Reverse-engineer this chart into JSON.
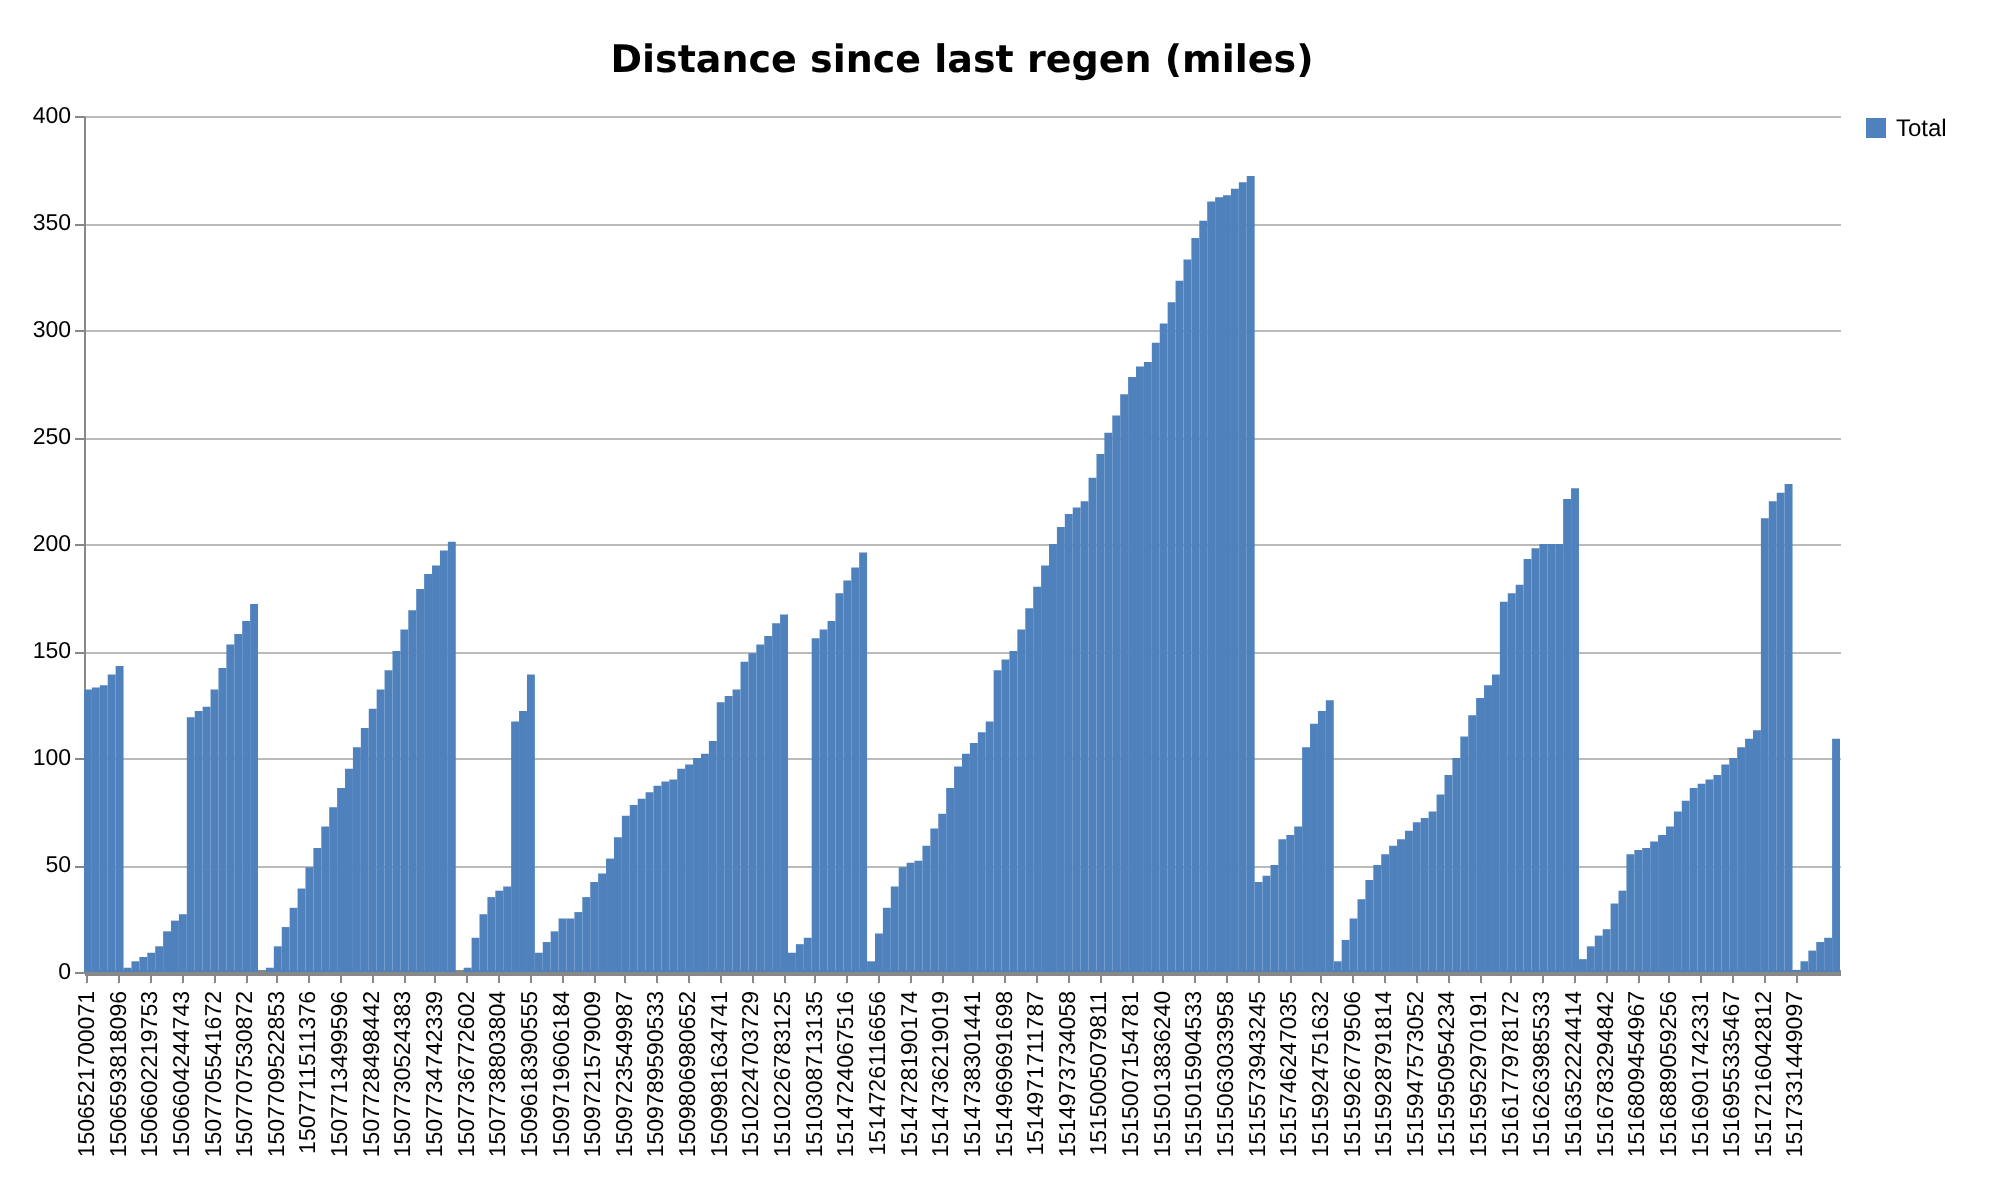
{
  "chart_data": {
    "type": "bar",
    "title": "Distance since last regen (miles)",
    "categories": [
      "1506521700071",
      null,
      null,
      null,
      "1506593818096",
      null,
      null,
      null,
      "1506602219753",
      null,
      null,
      null,
      "1506604244743",
      null,
      null,
      null,
      "1507705541672",
      null,
      null,
      null,
      "1507707530872",
      null,
      null,
      null,
      "1507709522853",
      null,
      null,
      null,
      "1507711511376",
      null,
      null,
      null,
      "1507713499596",
      null,
      null,
      null,
      "1507728498442",
      null,
      null,
      null,
      "1507730524383",
      null,
      null,
      null,
      "1507734742339",
      null,
      null,
      null,
      "1507736772602",
      null,
      null,
      null,
      "1507738803804",
      null,
      null,
      null,
      "1509618390555",
      null,
      null,
      null,
      "1509719606184",
      null,
      null,
      null,
      "1509721579009",
      null,
      null,
      null,
      "1509723549987",
      null,
      null,
      null,
      "1509789590533",
      null,
      null,
      null,
      "1509806980652",
      null,
      null,
      null,
      "1509981634741",
      null,
      null,
      null,
      "1510224703729",
      null,
      null,
      null,
      "1510226783125",
      null,
      null,
      null,
      "1510308713135",
      null,
      null,
      null,
      "1514724067516",
      null,
      null,
      null,
      "1514726116656",
      null,
      null,
      null,
      "1514728190174",
      null,
      null,
      null,
      "1514736219019",
      null,
      null,
      null,
      "1514738301441",
      null,
      null,
      null,
      "1514969691698",
      null,
      null,
      null,
      "1514971711787",
      null,
      null,
      null,
      "1514973734058",
      null,
      null,
      null,
      "1515005079811",
      null,
      null,
      null,
      "1515007154781",
      null,
      null,
      null,
      "1515013836240",
      null,
      null,
      null,
      "1515015904533",
      null,
      null,
      null,
      "1515063033958",
      null,
      null,
      null,
      "1515573943245",
      null,
      null,
      null,
      "1515746247035",
      null,
      null,
      null,
      "1515924751632",
      null,
      null,
      null,
      "1515926779506",
      null,
      null,
      null,
      "1515928791814",
      null,
      null,
      null,
      "1515947573052",
      null,
      null,
      null,
      "1515950954234",
      null,
      null,
      null,
      "1515952970191",
      null,
      null,
      null,
      "1516177978172",
      null,
      null,
      null,
      "1516263985533",
      null,
      null,
      null,
      "1516352224414",
      null,
      null,
      null,
      "1516783294842",
      null,
      null,
      null,
      "1516809454967",
      null,
      null,
      null,
      "1516889059256",
      null,
      null,
      null,
      "1516901742331",
      null,
      null,
      null,
      "1516955335467",
      null,
      null,
      null,
      "1517216042812",
      null,
      null,
      null,
      "1517331449097",
      null,
      null,
      null,
      null,
      null
    ],
    "series": [
      {
        "name": "Total",
        "color": "#4f81bd",
        "values": [
          132,
          133,
          134,
          139,
          143,
          2,
          5,
          7,
          9,
          12,
          19,
          24,
          27,
          119,
          122,
          124,
          132,
          142,
          153,
          158,
          164,
          172,
          0,
          2,
          12,
          21,
          30,
          39,
          49,
          58,
          68,
          77,
          86,
          95,
          105,
          114,
          123,
          132,
          141,
          150,
          160,
          169,
          179,
          186,
          190,
          197,
          201,
          0,
          2,
          16,
          27,
          35,
          38,
          40,
          117,
          122,
          139,
          9,
          14,
          19,
          25,
          25,
          28,
          35,
          42,
          46,
          53,
          63,
          73,
          78,
          81,
          84,
          87,
          89,
          90,
          95,
          97,
          100,
          102,
          108,
          126,
          129,
          132,
          145,
          149,
          153,
          157,
          163,
          167,
          9,
          13,
          16,
          156,
          160,
          164,
          177,
          183,
          189,
          196,
          5,
          18,
          30,
          40,
          49,
          51,
          52,
          59,
          67,
          74,
          86,
          96,
          102,
          107,
          112,
          117,
          141,
          146,
          150,
          160,
          170,
          180,
          190,
          200,
          208,
          214,
          217,
          220,
          231,
          242,
          252,
          260,
          270,
          278,
          283,
          285,
          294,
          303,
          313,
          323,
          333,
          343,
          351,
          360,
          362,
          363,
          366,
          369,
          372,
          42,
          45,
          50,
          62,
          64,
          68,
          105,
          116,
          122,
          127,
          5,
          15,
          25,
          34,
          43,
          50,
          55,
          59,
          62,
          66,
          70,
          72,
          75,
          83,
          92,
          100,
          110,
          120,
          128,
          134,
          139,
          173,
          177,
          181,
          193,
          198,
          200,
          200,
          200,
          221,
          226,
          6,
          12,
          17,
          20,
          32,
          38,
          55,
          57,
          58,
          61,
          64,
          68,
          75,
          80,
          86,
          88,
          90,
          92,
          97,
          100,
          105,
          109,
          113,
          212,
          220,
          224,
          228,
          1,
          5,
          10,
          14,
          16,
          109
        ]
      }
    ],
    "ylim": [
      0,
      400
    ],
    "yticks": [
      0,
      50,
      100,
      150,
      200,
      250,
      300,
      350,
      400
    ],
    "grid": "y",
    "legend": "right"
  }
}
